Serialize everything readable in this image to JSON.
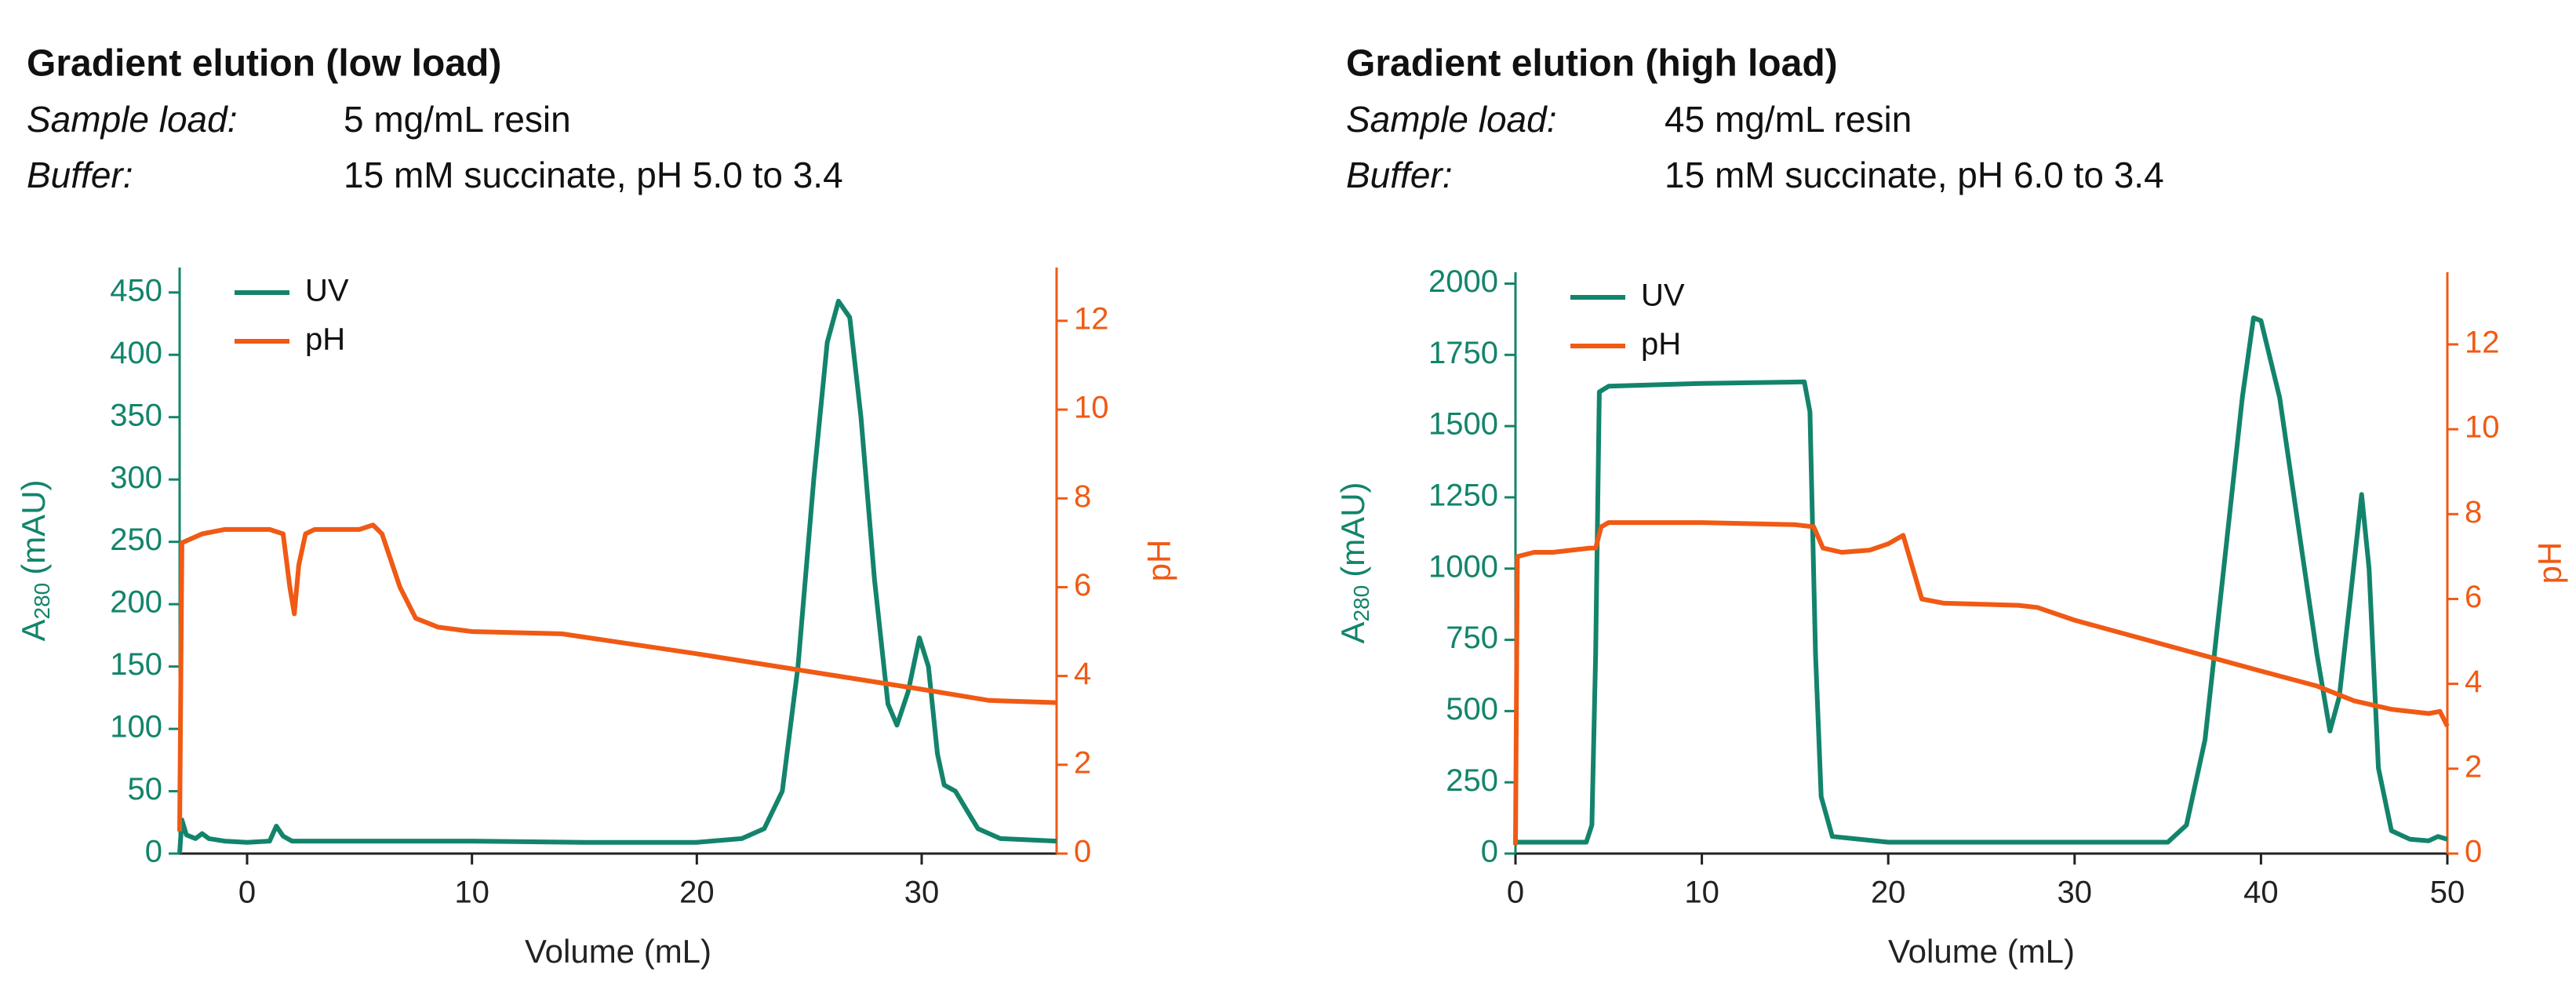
{
  "chart_data": [
    {
      "type": "line",
      "title": "Gradient elution (low load)",
      "annotations": [
        {
          "label": "Sample load:",
          "text": "5 mg/mL resin"
        },
        {
          "label": "Buffer:",
          "text": "15 mM succinate, pH 5.0 to 3.4"
        }
      ],
      "x_label": "Volume (mL)",
      "y_label": {
        "main": "A",
        "sub": "280",
        "unit": "(mAU)"
      },
      "y2_label": "pH",
      "xlim": [
        -3,
        36
      ],
      "xticks": [
        0,
        10,
        20,
        30
      ],
      "ylim": [
        0,
        470
      ],
      "yticks": [
        0,
        50,
        100,
        150,
        200,
        250,
        300,
        350,
        400,
        450
      ],
      "y2lim": [
        0,
        13.2
      ],
      "y2ticks": [
        0,
        2,
        4,
        6,
        8,
        10,
        12
      ],
      "series": [
        {
          "name": "UV",
          "color": "#13846b",
          "x": [
            -3,
            -2.9,
            -2.7,
            -2.3,
            -2,
            -1.7,
            -1,
            0,
            1,
            1.3,
            1.6,
            2,
            5,
            10,
            15,
            20,
            22,
            23,
            23.8,
            24.5,
            25.2,
            25.8,
            26.3,
            26.8,
            27.3,
            27.9,
            28.5,
            28.9,
            29.4,
            29.9,
            30.3,
            30.7,
            31,
            31.5,
            32,
            32.5,
            33.5,
            36
          ],
          "values": [
            0,
            27,
            15,
            12,
            16,
            12,
            10,
            9,
            10,
            22,
            14,
            10,
            10,
            10,
            9,
            9,
            12,
            20,
            50,
            150,
            300,
            410,
            443,
            430,
            350,
            220,
            120,
            103,
            130,
            173,
            150,
            80,
            55,
            50,
            35,
            20,
            12,
            10
          ]
        },
        {
          "name": "pH",
          "color": "#f05a14",
          "axis": "y2",
          "x": [
            -3,
            -2.9,
            -2,
            -1,
            1,
            1.6,
            1.9,
            2.1,
            2.3,
            2.6,
            3,
            5,
            5.6,
            6,
            6.8,
            7.5,
            8.5,
            10,
            14,
            20,
            25,
            30,
            33,
            36
          ],
          "values": [
            0.5,
            7.0,
            7.2,
            7.3,
            7.3,
            7.2,
            6.0,
            5.4,
            6.5,
            7.2,
            7.3,
            7.3,
            7.4,
            7.2,
            6.0,
            5.3,
            5.1,
            5.0,
            4.95,
            4.5,
            4.1,
            3.7,
            3.45,
            3.4
          ]
        }
      ]
    },
    {
      "type": "line",
      "title": "Gradient elution (high load)",
      "annotations": [
        {
          "label": "Sample load:",
          "text": "45 mg/mL resin"
        },
        {
          "label": "Buffer:",
          "text": "15 mM succinate, pH 6.0 to 3.4"
        }
      ],
      "x_label": "Volume (mL)",
      "y_label": {
        "main": "A",
        "sub": "280",
        "unit": "(mAU)"
      },
      "y2_label": "pH",
      "xlim": [
        0,
        50
      ],
      "xticks": [
        0,
        10,
        20,
        30,
        40,
        50
      ],
      "ylim": [
        0,
        2040
      ],
      "yticks": [
        0,
        250,
        500,
        750,
        1000,
        1250,
        1500,
        1750,
        2000
      ],
      "y2lim": [
        0,
        13.7
      ],
      "y2ticks": [
        0,
        2,
        4,
        6,
        8,
        10,
        12
      ],
      "series": [
        {
          "name": "UV",
          "color": "#13846b",
          "x": [
            0,
            3.8,
            4.1,
            4.3,
            4.5,
            5,
            10,
            15.5,
            15.8,
            16.1,
            16.4,
            17,
            20,
            30,
            35,
            36,
            37,
            38,
            39,
            39.6,
            40,
            41,
            42,
            43,
            43.7,
            44.2,
            44.8,
            45.4,
            45.8,
            46.3,
            47,
            48,
            49,
            49.5,
            50
          ],
          "values": [
            40,
            40,
            100,
            700,
            1620,
            1640,
            1650,
            1655,
            1550,
            700,
            200,
            60,
            40,
            40,
            40,
            100,
            400,
            1000,
            1600,
            1880,
            1870,
            1600,
            1150,
            700,
            430,
            550,
            900,
            1260,
            1000,
            300,
            80,
            50,
            45,
            60,
            50
          ]
        },
        {
          "name": "pH",
          "color": "#f05a14",
          "axis": "y2",
          "x": [
            0,
            0.1,
            1,
            2,
            4,
            4.3,
            4.6,
            5,
            10,
            15,
            16,
            16.5,
            17.5,
            19,
            20,
            20.8,
            21.2,
            21.8,
            23,
            27,
            28,
            30,
            35,
            40,
            43,
            45,
            47,
            49,
            49.6,
            50
          ],
          "values": [
            0.2,
            7.0,
            7.1,
            7.1,
            7.2,
            7.2,
            7.7,
            7.8,
            7.8,
            7.75,
            7.7,
            7.2,
            7.1,
            7.15,
            7.3,
            7.5,
            6.9,
            6.0,
            5.9,
            5.85,
            5.8,
            5.5,
            4.9,
            4.3,
            3.95,
            3.6,
            3.4,
            3.3,
            3.35,
            3.0
          ]
        }
      ]
    }
  ]
}
